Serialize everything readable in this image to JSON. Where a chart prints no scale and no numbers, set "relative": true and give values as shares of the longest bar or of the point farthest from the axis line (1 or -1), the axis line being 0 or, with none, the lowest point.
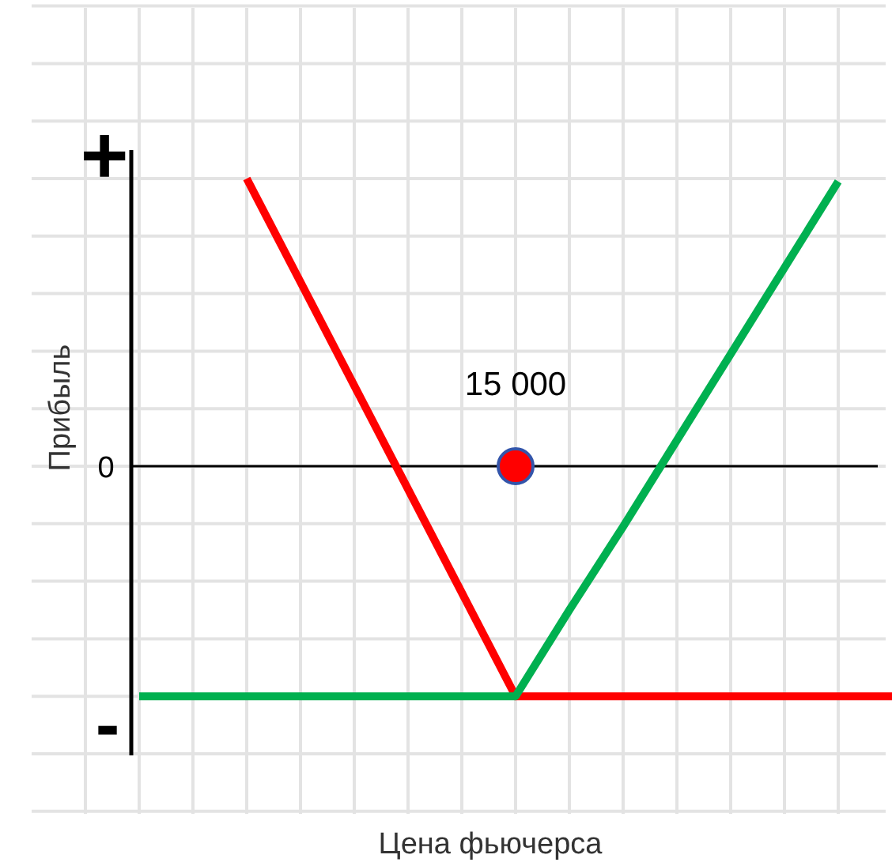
{
  "chart_data": {
    "type": "line",
    "relative": true,
    "xlabel": "Цена фьючерса",
    "ylabel": "Прибыль",
    "categories": [
      null,
      null,
      null,
      null,
      null,
      null,
      null,
      null,
      null,
      null,
      null,
      null,
      null,
      null,
      null
    ],
    "series": [
      {
        "color": "#ff0000",
        "values": [
          null,
          null,
          1,
          0.64,
          0.28,
          -0.08,
          -0.44,
          -0.8,
          -0.8,
          -0.8,
          -0.8,
          -0.8,
          -0.8,
          -0.8,
          -0.8
        ]
      },
      {
        "color": "#00b050",
        "values": [
          -0.8,
          -0.8,
          -0.8,
          -0.8,
          -0.8,
          -0.8,
          -0.8,
          -0.8,
          -0.5,
          -0.21,
          0.09,
          0.39,
          0.69,
          0.99,
          null
        ]
      }
    ],
    "annotations": [
      {
        "text": "15 000",
        "y": 0
      },
      "+",
      "0",
      "-"
    ],
    "grid": true,
    "marker": "none",
    "line_style": "solid"
  }
}
